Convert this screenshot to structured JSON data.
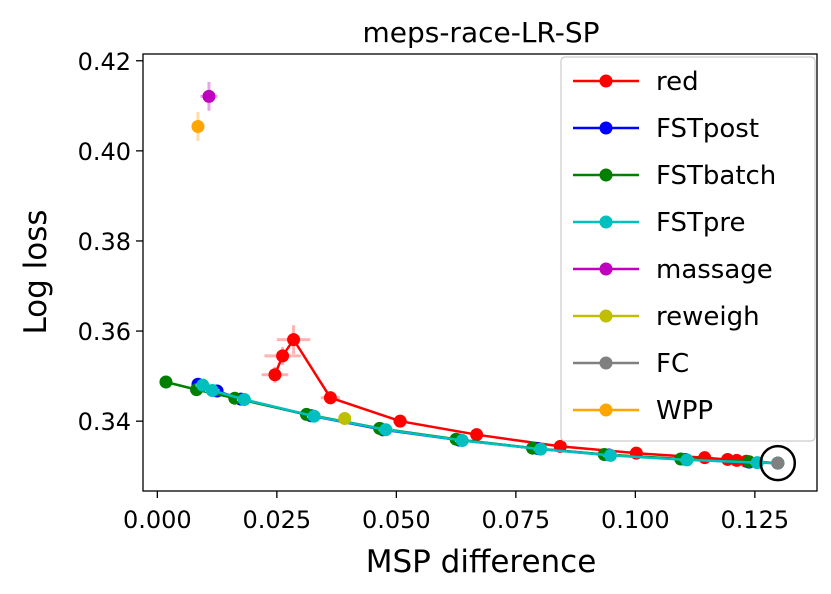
{
  "chart_data": {
    "type": "line",
    "title": "meps-race-LR-SP",
    "xlabel": "MSP difference",
    "ylabel": "Log loss",
    "xlim": [
      -0.003,
      0.138
    ],
    "ylim": [
      0.3245,
      0.4215
    ],
    "xticks": [
      0.0,
      0.025,
      0.05,
      0.075,
      0.1,
      0.125
    ],
    "xtick_labels": [
      "0.000",
      "0.025",
      "0.050",
      "0.075",
      "0.100",
      "0.125"
    ],
    "yticks": [
      0.34,
      0.36,
      0.38,
      0.4,
      0.42
    ],
    "ytick_labels": [
      "0.34",
      "0.36",
      "0.38",
      "0.40",
      "0.42"
    ],
    "grid": false,
    "legend_position": "top-right",
    "annotation": "circle around FC point",
    "series": [
      {
        "name": "red",
        "color": "#ff0000",
        "errorbar_color": "#ffb3b3",
        "x": [
          0.0246,
          0.0262,
          0.0285,
          0.0362,
          0.0508,
          0.0668,
          0.0843,
          0.1002,
          0.1145,
          0.1193,
          0.1212,
          0.1232,
          0.1298
        ],
        "y": [
          0.3503,
          0.3545,
          0.3581,
          0.3452,
          0.34,
          0.337,
          0.3344,
          0.3329,
          0.3319,
          0.3315,
          0.3313,
          0.3311,
          0.3307
        ],
        "xerr": [
          0.0028,
          0.0038,
          0.0035,
          0.002,
          0.0015,
          0.0012,
          0.001,
          0.001,
          0.001,
          0.001,
          0.001,
          0.001,
          0.0008
        ],
        "yerr": [
          0.0018,
          0.002,
          0.0032,
          0.0015,
          0.001,
          0.0012,
          0.0008,
          0.0006,
          0.0006,
          0.0005,
          0.0005,
          0.0005,
          0.0005
        ]
      },
      {
        "name": "FSTpost",
        "color": "#0000ff",
        "errorbar_color": "#b3b3ff",
        "x": [
          0.0085,
          0.0125,
          0.0175,
          0.0322,
          0.0472,
          0.0632,
          0.0797,
          0.0945,
          0.1105,
          0.1238,
          0.1298
        ],
        "y": [
          0.3482,
          0.3467,
          0.3449,
          0.3412,
          0.3381,
          0.3358,
          0.3339,
          0.3325,
          0.3315,
          0.3309,
          0.3307
        ],
        "xerr": [
          0.001,
          0.001,
          0.001,
          0.001,
          0.001,
          0.001,
          0.001,
          0.001,
          0.001,
          0.001,
          0.0008
        ],
        "yerr": [
          0.0008,
          0.0008,
          0.0006,
          0.0006,
          0.0006,
          0.0005,
          0.0005,
          0.0005,
          0.0005,
          0.0005,
          0.0005
        ]
      },
      {
        "name": "FSTbatch",
        "color": "#008000",
        "errorbar_color": "#b3d9b3",
        "x": [
          0.0018,
          0.0082,
          0.0162,
          0.0312,
          0.0465,
          0.0625,
          0.0785,
          0.0935,
          0.1095,
          0.1238,
          0.1298
        ],
        "y": [
          0.3487,
          0.347,
          0.3451,
          0.3415,
          0.3384,
          0.336,
          0.334,
          0.3326,
          0.3316,
          0.331,
          0.3307
        ],
        "xerr": [
          0.0008,
          0.0008,
          0.0008,
          0.0008,
          0.0008,
          0.0008,
          0.0008,
          0.0008,
          0.0008,
          0.0008,
          0.0008
        ],
        "yerr": [
          0.0005,
          0.0005,
          0.0005,
          0.0005,
          0.0005,
          0.0005,
          0.0005,
          0.0005,
          0.0005,
          0.0005,
          0.0005
        ]
      },
      {
        "name": "FSTpre",
        "color": "#00bfbf",
        "errorbar_color": "#a6e6e6",
        "x": [
          0.0095,
          0.0115,
          0.0182,
          0.0328,
          0.0478,
          0.0638,
          0.0802,
          0.0948,
          0.1108,
          0.1255,
          0.1298
        ],
        "y": [
          0.348,
          0.3468,
          0.3448,
          0.3411,
          0.3381,
          0.3357,
          0.3338,
          0.3324,
          0.3314,
          0.3308,
          0.3307
        ],
        "xerr": [
          0.0015,
          0.0015,
          0.0015,
          0.0015,
          0.0015,
          0.0015,
          0.0015,
          0.0015,
          0.0015,
          0.0015,
          0.0012
        ],
        "yerr": [
          0.0008,
          0.0008,
          0.0008,
          0.0008,
          0.0008,
          0.0008,
          0.0008,
          0.0008,
          0.0008,
          0.0008,
          0.0008
        ]
      },
      {
        "name": "massage",
        "color": "#bf00bf",
        "errorbar_color": "#e6a6e6",
        "x": [
          0.0108
        ],
        "y": [
          0.4121
        ],
        "xerr": [
          0.0018
        ],
        "yerr": [
          0.0032
        ]
      },
      {
        "name": "reweigh",
        "color": "#bfbf00",
        "errorbar_color": "#e6e6a6",
        "x": [
          0.0392
        ],
        "y": [
          0.3406
        ],
        "xerr": [
          0.001
        ],
        "yerr": [
          0.0008
        ]
      },
      {
        "name": "FC",
        "color": "#808080",
        "errorbar_color": "#cccccc",
        "x": [
          0.1298
        ],
        "y": [
          0.3307
        ],
        "xerr": [
          0.0012
        ],
        "yerr": [
          0.0008
        ]
      },
      {
        "name": "WPP",
        "color": "#ffa500",
        "errorbar_color": "#ffdca6",
        "x": [
          0.0085
        ],
        "y": [
          0.4054
        ],
        "xerr": [
          0.001
        ],
        "yerr": [
          0.0032
        ]
      }
    ]
  }
}
